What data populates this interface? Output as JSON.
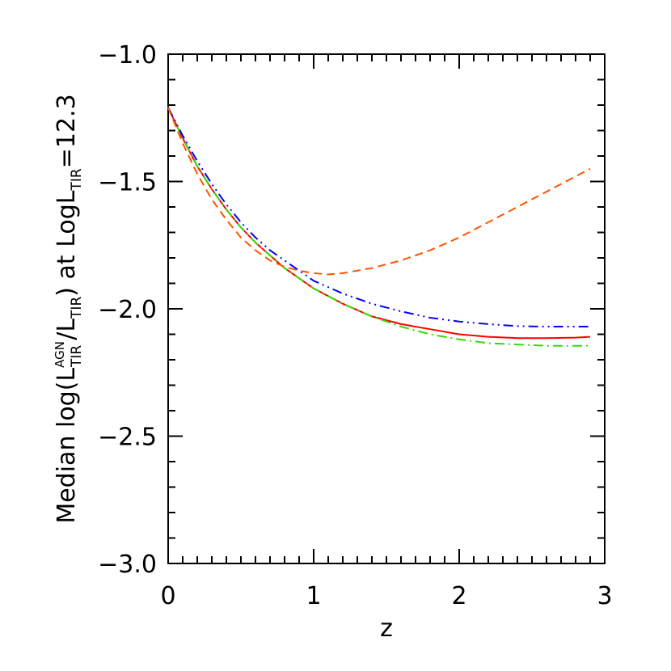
{
  "chart_data": {
    "type": "line",
    "xlabel": "z",
    "ylabel": {
      "prefix": "Median log(L",
      "sub1": "TIR",
      "sup1": "AGN",
      "mid": "/L",
      "sub2": "TIR",
      "close": ") at LogL",
      "sub3": "TIR",
      "suffix": "=12.3"
    },
    "xlim": [
      0,
      3
    ],
    "ylim": [
      -3.0,
      -1.0
    ],
    "x_ticks": [
      0,
      1,
      2,
      3
    ],
    "x_tick_labels": [
      "0",
      "1",
      "2",
      "3"
    ],
    "y_ticks": [
      -3.0,
      -2.5,
      -2.0,
      -1.5,
      -1.0
    ],
    "y_tick_labels": [
      "−3.0",
      "−2.5",
      "−2.0",
      "−1.5",
      "−1.0"
    ],
    "grid": false,
    "series": [
      {
        "color": "#ff0000",
        "style": "solid",
        "x": [
          0.0,
          0.1,
          0.2,
          0.3,
          0.4,
          0.5,
          0.6,
          0.7,
          0.8,
          0.9,
          1.0,
          1.2,
          1.4,
          1.6,
          1.8,
          2.0,
          2.2,
          2.4,
          2.6,
          2.8,
          2.9
        ],
        "y": [
          -1.21,
          -1.33,
          -1.44,
          -1.53,
          -1.61,
          -1.68,
          -1.74,
          -1.79,
          -1.84,
          -1.88,
          -1.92,
          -1.98,
          -2.03,
          -2.06,
          -2.08,
          -2.1,
          -2.11,
          -2.115,
          -2.115,
          -2.113,
          -2.11
        ]
      },
      {
        "color": "#33dd00",
        "style": "dashdot",
        "x": [
          0.0,
          0.1,
          0.2,
          0.3,
          0.4,
          0.5,
          0.6,
          0.7,
          0.8,
          0.9,
          1.0,
          1.2,
          1.4,
          1.6,
          1.8,
          2.0,
          2.2,
          2.4,
          2.6,
          2.8,
          2.9
        ],
        "y": [
          -1.21,
          -1.33,
          -1.44,
          -1.53,
          -1.61,
          -1.68,
          -1.74,
          -1.79,
          -1.84,
          -1.88,
          -1.92,
          -1.98,
          -2.03,
          -2.07,
          -2.1,
          -2.12,
          -2.135,
          -2.14,
          -2.145,
          -2.145,
          -2.145
        ]
      },
      {
        "color": "#0000ff",
        "style": "dashdotdot",
        "x": [
          0.0,
          0.1,
          0.2,
          0.3,
          0.4,
          0.5,
          0.6,
          0.7,
          0.8,
          0.9,
          1.0,
          1.2,
          1.4,
          1.6,
          1.8,
          2.0,
          2.2,
          2.4,
          2.6,
          2.8,
          2.9
        ],
        "y": [
          -1.21,
          -1.32,
          -1.42,
          -1.51,
          -1.59,
          -1.66,
          -1.72,
          -1.77,
          -1.81,
          -1.85,
          -1.89,
          -1.94,
          -1.98,
          -2.01,
          -2.035,
          -2.05,
          -2.06,
          -2.068,
          -2.07,
          -2.07,
          -2.07
        ]
      },
      {
        "color": "#ff5500",
        "style": "dashed",
        "x": [
          0.0,
          0.1,
          0.2,
          0.3,
          0.4,
          0.5,
          0.6,
          0.7,
          0.8,
          0.9,
          1.0,
          1.1,
          1.2,
          1.4,
          1.6,
          1.8,
          2.0,
          2.2,
          2.4,
          2.6,
          2.8,
          2.9
        ],
        "y": [
          -1.21,
          -1.35,
          -1.47,
          -1.57,
          -1.65,
          -1.72,
          -1.77,
          -1.81,
          -1.835,
          -1.85,
          -1.86,
          -1.865,
          -1.86,
          -1.84,
          -1.81,
          -1.77,
          -1.72,
          -1.66,
          -1.6,
          -1.54,
          -1.48,
          -1.45
        ]
      }
    ]
  }
}
